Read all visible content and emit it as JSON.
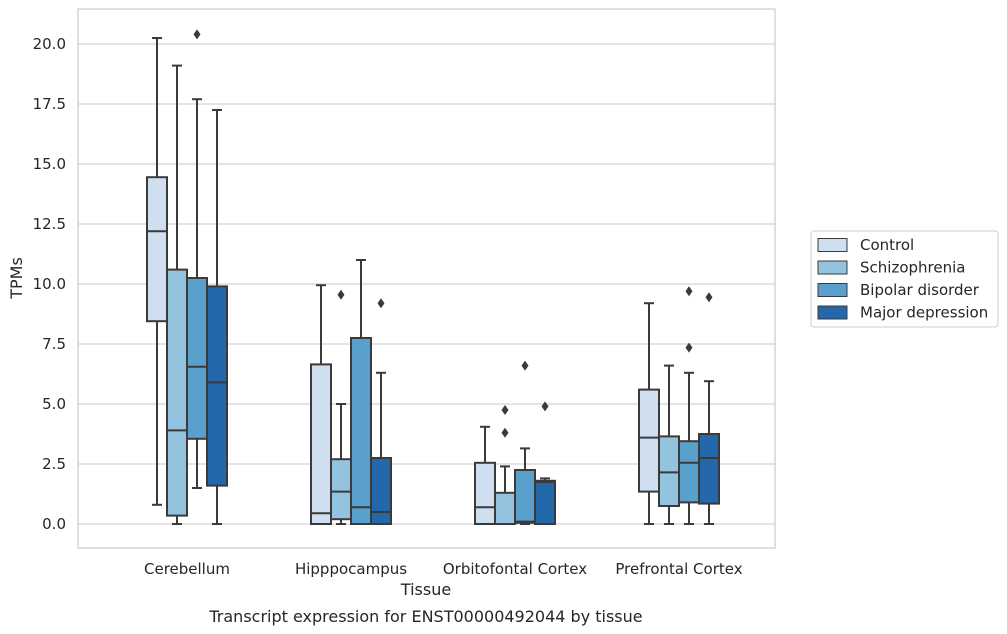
{
  "caption": "Transcript expression for ENST00000492044 by tissue",
  "chart_data": {
    "type": "boxplot",
    "xlabel": "Tissue",
    "ylabel": "TPMs",
    "ylim": [
      -1.0,
      21.5
    ],
    "yticks": [
      "0.0",
      "2.5",
      "5.0",
      "7.5",
      "10.0",
      "12.5",
      "15.0",
      "17.5",
      "20.0"
    ],
    "grid": "horizontal",
    "legend_position": "right",
    "categories": [
      "Cerebellum",
      "Hipppocampus",
      "Orbitofontal Cortex",
      "Prefrontal Cortex"
    ],
    "series": [
      {
        "name": "Control",
        "color": "#cfdff0",
        "boxes": [
          {
            "whisker_low": 0.8,
            "q1": 8.45,
            "median": 12.2,
            "q3": 14.45,
            "whisker_high": 20.25,
            "outliers": []
          },
          {
            "whisker_low": 0.0,
            "q1": 0.0,
            "median": 0.45,
            "q3": 6.65,
            "whisker_high": 9.95,
            "outliers": []
          },
          {
            "whisker_low": 0.0,
            "q1": 0.0,
            "median": 0.7,
            "q3": 2.55,
            "whisker_high": 4.05,
            "outliers": []
          },
          {
            "whisker_low": 0.0,
            "q1": 1.35,
            "median": 3.6,
            "q3": 5.6,
            "whisker_high": 9.2,
            "outliers": []
          }
        ]
      },
      {
        "name": "Schizophrenia",
        "color": "#93c3df",
        "boxes": [
          {
            "whisker_low": 0.0,
            "q1": 0.35,
            "median": 3.9,
            "q3": 10.6,
            "whisker_high": 19.1,
            "outliers": []
          },
          {
            "whisker_low": 0.0,
            "q1": 0.2,
            "median": 1.35,
            "q3": 2.7,
            "whisker_high": 5.0,
            "outliers": [
              9.55
            ]
          },
          {
            "whisker_low": 0.0,
            "q1": 0.0,
            "median": 0.0,
            "q3": 1.3,
            "whisker_high": 2.4,
            "outliers": [
              3.8,
              4.75
            ]
          },
          {
            "whisker_low": 0.0,
            "q1": 0.75,
            "median": 2.15,
            "q3": 3.65,
            "whisker_high": 6.6,
            "outliers": []
          }
        ]
      },
      {
        "name": "Bipolar disorder",
        "color": "#5aa0cc",
        "boxes": [
          {
            "whisker_low": 1.5,
            "q1": 3.55,
            "median": 6.55,
            "q3": 10.25,
            "whisker_high": 17.7,
            "outliers": [
              20.4
            ]
          },
          {
            "whisker_low": 0.0,
            "q1": 0.0,
            "median": 0.7,
            "q3": 7.75,
            "whisker_high": 11.0,
            "outliers": []
          },
          {
            "whisker_low": 0.0,
            "q1": 0.05,
            "median": 0.1,
            "q3": 2.25,
            "whisker_high": 3.15,
            "outliers": [
              6.6
            ]
          },
          {
            "whisker_low": 0.0,
            "q1": 0.9,
            "median": 2.55,
            "q3": 3.45,
            "whisker_high": 6.3,
            "outliers": [
              7.35,
              9.7
            ]
          }
        ]
      },
      {
        "name": "Major depression",
        "color": "#2268aa",
        "boxes": [
          {
            "whisker_low": 0.0,
            "q1": 1.6,
            "median": 5.9,
            "q3": 9.9,
            "whisker_high": 17.25,
            "outliers": []
          },
          {
            "whisker_low": 0.0,
            "q1": 0.0,
            "median": 0.5,
            "q3": 2.75,
            "whisker_high": 6.3,
            "outliers": [
              9.2
            ]
          },
          {
            "whisker_low": 0.0,
            "q1": 0.0,
            "median": 1.75,
            "q3": 1.8,
            "whisker_high": 1.9,
            "outliers": [
              4.9
            ]
          },
          {
            "whisker_low": 0.0,
            "q1": 0.85,
            "median": 2.75,
            "q3": 3.75,
            "whisker_high": 5.95,
            "outliers": [
              9.45
            ]
          }
        ]
      }
    ]
  }
}
